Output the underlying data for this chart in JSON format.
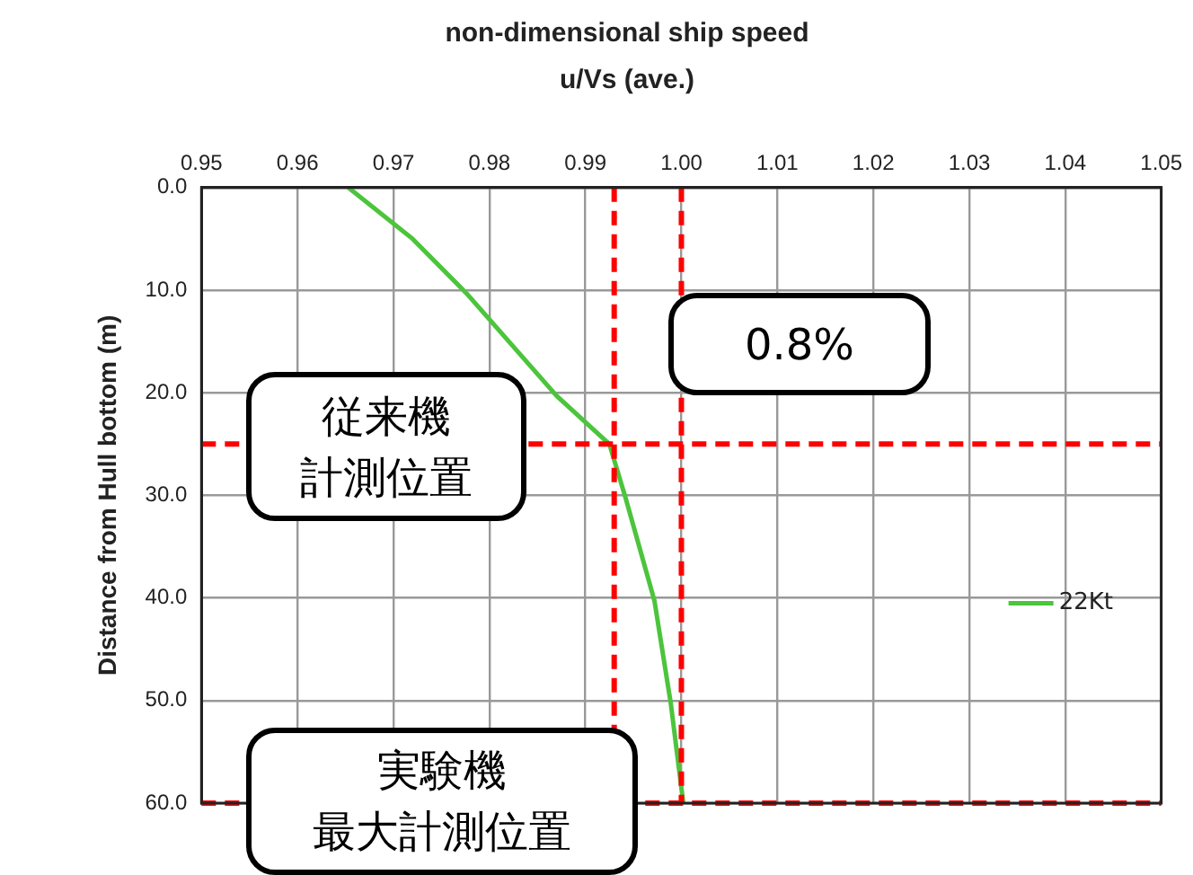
{
  "chart_data": {
    "type": "line",
    "title": "non-dimensional ship speed",
    "subtitle": "u/Vs (ave.)",
    "ylabel": "Distance from Hull bottom (m)",
    "xlim": [
      0.95,
      1.05
    ],
    "xticks": [
      0.95,
      0.96,
      0.97,
      0.98,
      0.99,
      {
        "value": 1.0,
        "label": "1.00"
      },
      1.01,
      1.02,
      1.03,
      1.04,
      1.05
    ],
    "ylim": [
      60,
      0
    ],
    "yticks": [
      {
        "value": 0,
        "label": "0.0"
      },
      {
        "value": 10,
        "label": "10.0"
      },
      {
        "value": 20,
        "label": "20.0"
      },
      {
        "value": 30,
        "label": "30.0"
      },
      {
        "value": 40,
        "label": "40.0"
      },
      {
        "value": 50,
        "label": "50.0"
      },
      {
        "value": 60,
        "label": "60.0"
      }
    ],
    "grid": true,
    "legend": "right",
    "marker": "none",
    "line_style": "solid",
    "series": [
      {
        "name": "22Kt",
        "color": "#4cc43c",
        "x": [
          0.9653,
          0.972,
          0.9776,
          0.987,
          0.9925,
          0.9942,
          0.9972,
          0.9989,
          1.0002
        ],
        "values": [
          0,
          5,
          10.3,
          20.3,
          25,
          30.3,
          40.3,
          50.3,
          60
        ]
      }
    ],
    "ref_lines": [
      {
        "axis": "y",
        "value": 25,
        "color": "#ff0000",
        "line_style": "dashed"
      },
      {
        "axis": "x",
        "value": 0.993,
        "color": "#ff0000",
        "line_style": "dashed"
      },
      {
        "axis": "x",
        "value": 1.0,
        "color": "#ff0000",
        "line_style": "dashed"
      },
      {
        "axis": "y",
        "value": 60,
        "color": "#ff0000",
        "line_style": "dashed"
      }
    ],
    "annotations": [
      "0.8%",
      "従来機計測位置",
      "実験機最大計測位置"
    ]
  }
}
